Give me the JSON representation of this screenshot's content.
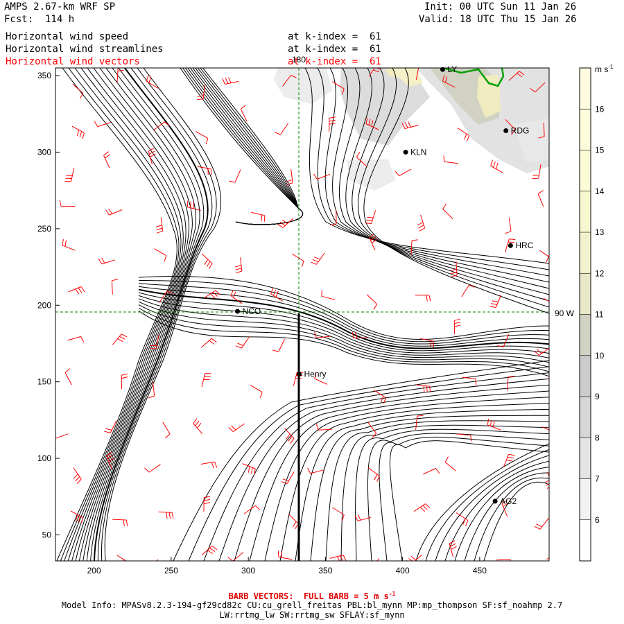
{
  "header": {
    "model": "AMPS 2.67-km WRF SP",
    "fcst": "Fcst:  114 h",
    "init": "Init: 00 UTC Sun 11 Jan 26",
    "valid": "Valid: 18 UTC Thu 15 Jan 26"
  },
  "fields": [
    {
      "name": "Horizontal wind speed",
      "level": "at k-index =  61",
      "color": "#000000"
    },
    {
      "name": "Horizontal wind streamlines",
      "level": "at k-index =  61",
      "color": "#000000"
    },
    {
      "name": "Horizontal wind vectors",
      "level": "at k-index =  61",
      "color": "#ff0000"
    }
  ],
  "axes": {
    "x_ticks": [
      "200",
      "250",
      "300",
      "350",
      "400",
      "450"
    ],
    "x_values": [
      200,
      250,
      300,
      350,
      400,
      450
    ],
    "y_ticks": [
      "350",
      "300",
      "250",
      "200",
      "150",
      "100",
      "50"
    ],
    "y_values": [
      350,
      300,
      250,
      200,
      150,
      100,
      50
    ],
    "xlim": [
      175,
      495
    ],
    "ylim": [
      33,
      355
    ]
  },
  "grid_labels": {
    "meridian_180": "180",
    "meridian_90w": "90 W"
  },
  "stations": [
    {
      "id": "KLN",
      "x": 402,
      "y": 300
    },
    {
      "id": "RDG",
      "x": 467,
      "y": 314
    },
    {
      "id": "HRC",
      "x": 470,
      "y": 239
    },
    {
      "id": "NCO",
      "x": 293,
      "y": 196
    },
    {
      "id": "Henry",
      "x": 333,
      "y": 155
    },
    {
      "id": "AG2",
      "x": 460,
      "y": 72
    },
    {
      "id": "LY",
      "x": 426,
      "y": 354
    }
  ],
  "colorbar": {
    "unit": "m s",
    "unit_exp": "-1",
    "levels": [
      "6",
      "7",
      "8",
      "9",
      "10",
      "11",
      "12",
      "13",
      "14",
      "15",
      "16"
    ],
    "colors": [
      "#ffffff",
      "#f2f2f2",
      "#e4e4e4",
      "#d6d6d6",
      "#cbcbcb",
      "#d2d2c4",
      "#e8e8c8",
      "#f2f2cc",
      "#f8f8d0",
      "#fbfbd6",
      "#fdfddc",
      "#fffbe0"
    ]
  },
  "footer": {
    "barb": "BARB VECTORS:  FULL BARB = 5 m s",
    "barb_exp": "-1",
    "line1": "Model Info: MPASv8.2.3-194-gf29cd82c CU:cu_grell_freitas PBL:bl_mynn MP:mp_thompson SF:sf_noahmp 2.7",
    "line2": "LW:rrtmg_lw SW:rrtmg_sw SFLAY:sf_mynn"
  }
}
